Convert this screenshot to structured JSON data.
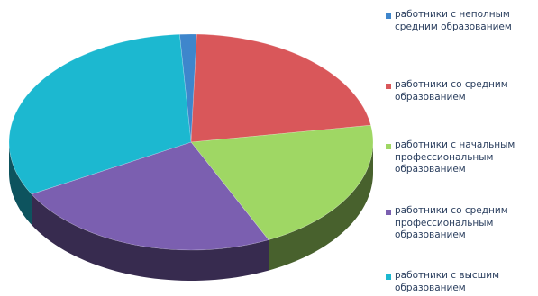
{
  "chart_data": {
    "type": "pie",
    "style": "3d",
    "legend_position": "right",
    "series": [
      {
        "name": "работники с неполным\nсредним образованием",
        "value": 1.5,
        "color": "#3e86cc"
      },
      {
        "name": "работники со средним\nобразованием",
        "value": 22,
        "color": "#d9575a"
      },
      {
        "name": "работники с начальным\nпрофессиональным\nобразованием",
        "value": 20.5,
        "color": "#9fd764"
      },
      {
        "name": "работники со средним\nпрофессиональным\nобразованием",
        "value": 24,
        "color": "#7b5fb0"
      },
      {
        "name": "работники с высшим\nобразованием",
        "value": 32,
        "color": "#1cb8d0"
      }
    ]
  }
}
